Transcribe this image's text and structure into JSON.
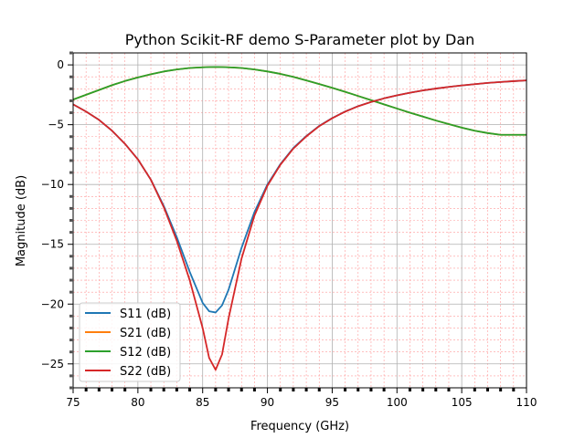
{
  "chart_data": {
    "type": "line",
    "title": "Python Scikit-RF demo S-Parameter plot by Dan",
    "xlabel": "Frequency (GHz)",
    "ylabel": "Magnitude (dB)",
    "xlim": [
      75,
      110
    ],
    "ylim": [
      -27,
      1
    ],
    "xticks": [
      75,
      80,
      85,
      90,
      95,
      100,
      105,
      110
    ],
    "yticks": [
      0,
      -5,
      -10,
      -15,
      -20,
      -25
    ],
    "ytick_labels": [
      "0",
      "−5",
      "−10",
      "−15",
      "−20",
      "−25"
    ],
    "grid": {
      "major": true,
      "minor": true,
      "minor_color": "#ff9a9a"
    },
    "legend_position": "lower-left",
    "x": [
      75,
      76,
      77,
      78,
      79,
      80,
      81,
      82,
      83,
      84,
      85,
      85.5,
      86,
      86.5,
      87,
      88,
      89,
      90,
      91,
      92,
      93,
      94,
      95,
      96,
      97,
      98,
      99,
      100,
      101,
      102,
      103,
      104,
      105,
      106,
      107,
      108,
      109,
      110
    ],
    "series": [
      {
        "name": "S11 (dB)",
        "color": "#1f77b4",
        "values": [
          -3.3,
          -3.9,
          -4.6,
          -5.5,
          -6.6,
          -7.9,
          -9.6,
          -11.8,
          -14.4,
          -17.3,
          -19.9,
          -20.6,
          -20.7,
          -20.1,
          -18.8,
          -15.3,
          -12.3,
          -10.0,
          -8.3,
          -6.95,
          -5.95,
          -5.1,
          -4.45,
          -3.9,
          -3.45,
          -3.1,
          -2.8,
          -2.55,
          -2.33,
          -2.14,
          -1.98,
          -1.84,
          -1.72,
          -1.61,
          -1.51,
          -1.43,
          -1.36,
          -1.3
        ]
      },
      {
        "name": "S21 (dB)",
        "color": "#ff7f0e",
        "values": [
          -2.9,
          -2.5,
          -2.1,
          -1.7,
          -1.35,
          -1.05,
          -0.78,
          -0.55,
          -0.38,
          -0.26,
          -0.2,
          -0.18,
          -0.17,
          -0.18,
          -0.2,
          -0.26,
          -0.38,
          -0.55,
          -0.75,
          -1.0,
          -1.3,
          -1.6,
          -1.92,
          -2.25,
          -2.6,
          -2.95,
          -3.3,
          -3.65,
          -4.0,
          -4.32,
          -4.65,
          -4.95,
          -5.25,
          -5.5,
          -5.7,
          -5.85,
          -5.85,
          -5.85
        ]
      },
      {
        "name": "S12 (dB)",
        "color": "#2ca02c",
        "values": [
          -2.9,
          -2.5,
          -2.1,
          -1.7,
          -1.35,
          -1.05,
          -0.78,
          -0.55,
          -0.38,
          -0.26,
          -0.2,
          -0.18,
          -0.17,
          -0.18,
          -0.2,
          -0.26,
          -0.38,
          -0.55,
          -0.75,
          -1.0,
          -1.3,
          -1.6,
          -1.92,
          -2.25,
          -2.6,
          -2.95,
          -3.3,
          -3.65,
          -4.0,
          -4.32,
          -4.65,
          -4.95,
          -5.25,
          -5.5,
          -5.7,
          -5.85,
          -5.85,
          -5.85
        ]
      },
      {
        "name": "S22 (dB)",
        "color": "#d62728",
        "values": [
          -3.3,
          -3.9,
          -4.6,
          -5.5,
          -6.6,
          -7.9,
          -9.6,
          -11.9,
          -14.7,
          -18.0,
          -22.0,
          -24.5,
          -25.5,
          -24.2,
          -21.2,
          -16.2,
          -12.6,
          -10.1,
          -8.35,
          -7.0,
          -5.98,
          -5.12,
          -4.46,
          -3.91,
          -3.46,
          -3.1,
          -2.8,
          -2.55,
          -2.33,
          -2.14,
          -1.98,
          -1.84,
          -1.72,
          -1.61,
          -1.51,
          -1.43,
          -1.36,
          -1.3
        ]
      }
    ]
  }
}
